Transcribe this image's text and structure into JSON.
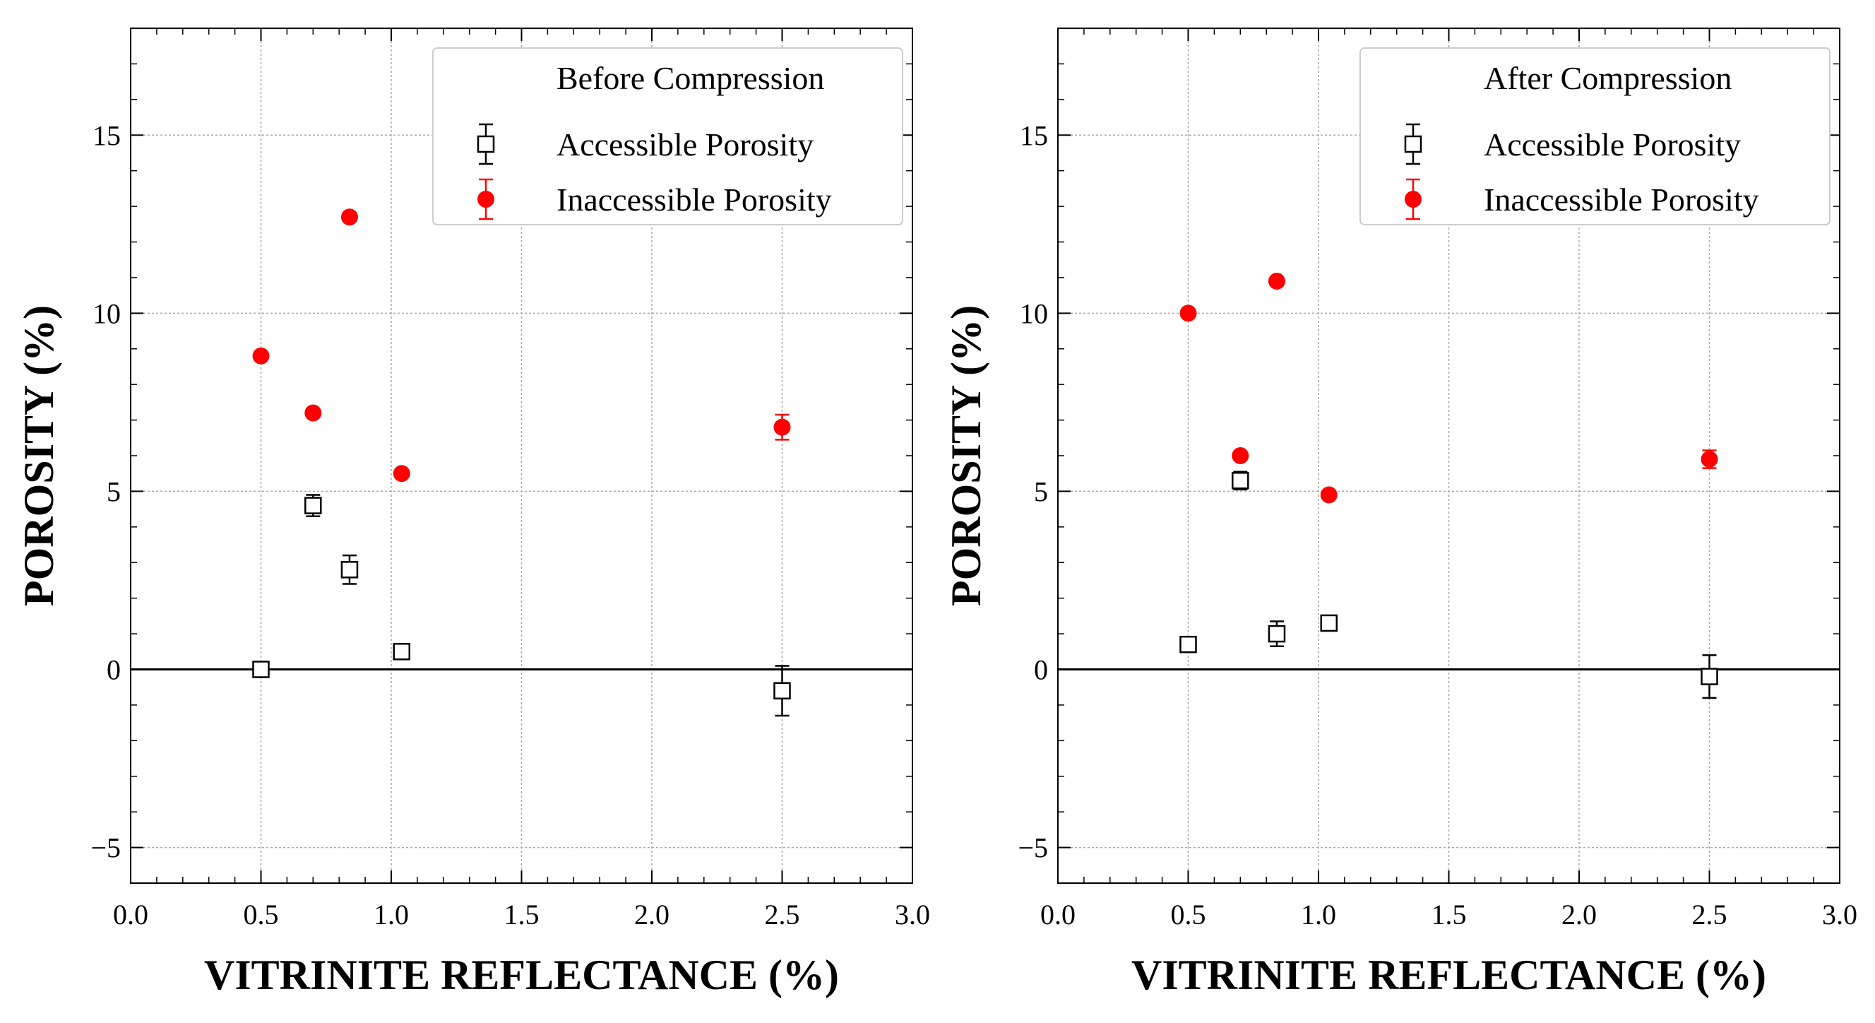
{
  "figure": {
    "accessible_color": "#000000",
    "inaccessible_color": "#ff0000"
  },
  "chart_data": [
    {
      "type": "scatter",
      "title": "",
      "legend_title": "Before Compression",
      "xlabel": "VITRINITE REFLECTANCE (%)",
      "ylabel": "POROSITY (%)",
      "xlim": [
        0.0,
        3.0
      ],
      "ylim": [
        -6.0,
        18.0
      ],
      "xticks": [
        0.0,
        0.5,
        1.0,
        1.5,
        2.0,
        2.5,
        3.0
      ],
      "xtick_labels": [
        "0.0",
        "0.5",
        "1.0",
        "1.5",
        "2.0",
        "2.5",
        "3.0"
      ],
      "yticks": [
        -5,
        0,
        5,
        10,
        15
      ],
      "ytick_labels": [
        "−5",
        "0",
        "5",
        "10",
        "15"
      ],
      "grid": true,
      "legend_position": "top-right",
      "series": [
        {
          "name": "Accessible Porosity",
          "marker": "open-square",
          "color": "#000000",
          "x": [
            0.5,
            0.7,
            0.84,
            1.04,
            2.5
          ],
          "y": [
            0.0,
            4.6,
            2.8,
            0.5,
            -0.6
          ],
          "err": [
            0.15,
            0.3,
            0.4,
            0.2,
            0.7
          ]
        },
        {
          "name": "Inaccessible Porosity",
          "marker": "filled-circle",
          "color": "#ff0000",
          "x": [
            0.5,
            0.7,
            0.84,
            1.04,
            2.5
          ],
          "y": [
            8.8,
            7.2,
            12.7,
            5.5,
            6.8
          ],
          "err": [
            0.1,
            0.1,
            0.1,
            0.1,
            0.35
          ]
        }
      ]
    },
    {
      "type": "scatter",
      "title": "",
      "legend_title": "After Compression",
      "xlabel": "VITRINITE REFLECTANCE (%)",
      "ylabel": "POROSITY (%)",
      "xlim": [
        0.0,
        3.0
      ],
      "ylim": [
        -6.0,
        18.0
      ],
      "xticks": [
        0.0,
        0.5,
        1.0,
        1.5,
        2.0,
        2.5,
        3.0
      ],
      "xtick_labels": [
        "0.0",
        "0.5",
        "1.0",
        "1.5",
        "2.0",
        "2.5",
        "3.0"
      ],
      "yticks": [
        -5,
        0,
        5,
        10,
        15
      ],
      "ytick_labels": [
        "−5",
        "0",
        "5",
        "10",
        "15"
      ],
      "grid": true,
      "legend_position": "top-right",
      "series": [
        {
          "name": "Accessible Porosity",
          "marker": "open-square",
          "color": "#000000",
          "x": [
            0.5,
            0.7,
            0.84,
            1.04,
            2.5
          ],
          "y": [
            0.7,
            5.3,
            1.0,
            1.3,
            -0.2
          ],
          "err": [
            0.15,
            0.25,
            0.35,
            0.2,
            0.6
          ]
        },
        {
          "name": "Inaccessible Porosity",
          "marker": "filled-circle",
          "color": "#ff0000",
          "x": [
            0.5,
            0.7,
            0.84,
            1.04,
            2.5
          ],
          "y": [
            10.0,
            6.0,
            10.9,
            4.9,
            5.9
          ],
          "err": [
            0.1,
            0.1,
            0.1,
            0.1,
            0.25
          ]
        }
      ]
    }
  ]
}
